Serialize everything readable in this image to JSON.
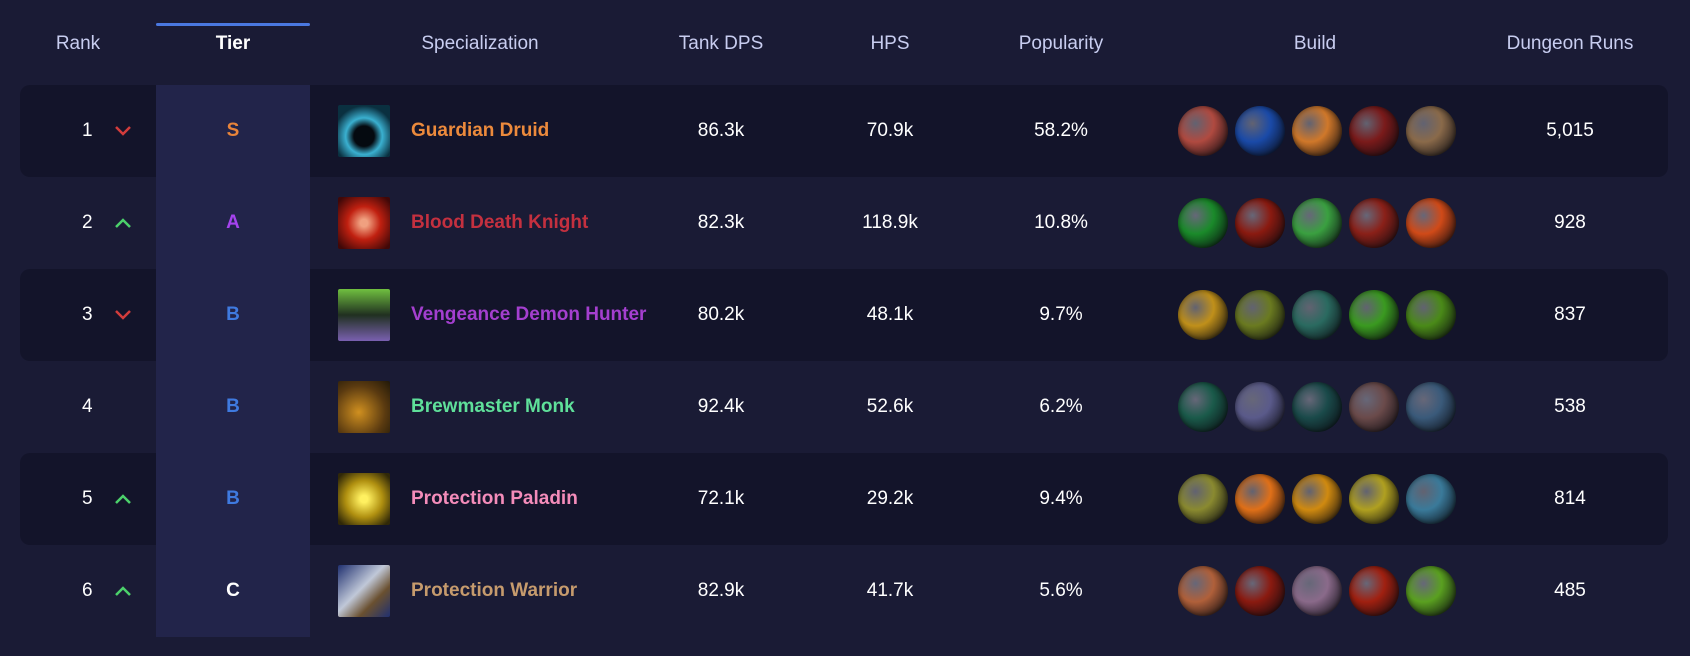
{
  "headers": {
    "rank": "Rank",
    "tier": "Tier",
    "spec": "Specialization",
    "tank_dps": "Tank DPS",
    "hps": "HPS",
    "popularity": "Popularity",
    "build": "Build",
    "runs": "Dungeon Runs"
  },
  "colors": {
    "up": "#4cd16b",
    "down": "#d23c3c",
    "tier_S": "#e8843a",
    "tier_A": "#a543ee",
    "tier_B": "#3f7ae0",
    "tier_C": "#ffffff",
    "accent": "#4a78e0"
  },
  "rows": [
    {
      "rank": "1",
      "trend": "down",
      "tier": "S",
      "spec": "Guardian Druid",
      "spec_color": "#ec8a3c",
      "tank_dps": "86.3k",
      "hps": "70.9k",
      "popularity": "58.2%",
      "runs": "5,015",
      "spec_icon": "bear-paw-icon",
      "build": [
        "#b04a40",
        "#1a4aa8",
        "#d0782a",
        "#7a1a1a",
        "#8a6a4a"
      ]
    },
    {
      "rank": "2",
      "trend": "up",
      "tier": "A",
      "spec": "Blood Death Knight",
      "spec_color": "#c4303f",
      "tank_dps": "82.3k",
      "hps": "118.9k",
      "popularity": "10.8%",
      "runs": "928",
      "spec_icon": "blood-skull-icon",
      "build": [
        "#1a8a2a",
        "#8a1a10",
        "#3aa040",
        "#8a2018",
        "#d04a18"
      ]
    },
    {
      "rank": "3",
      "trend": "down",
      "tier": "B",
      "spec": "Vengeance Demon Hunter",
      "spec_color": "#a43fcf",
      "tank_dps": "80.2k",
      "hps": "48.1k",
      "popularity": "9.7%",
      "runs": "837",
      "spec_icon": "demon-horns-icon",
      "build": [
        "#c0901a",
        "#6a7a20",
        "#2a6a60",
        "#3a9a20",
        "#4a8a18"
      ]
    },
    {
      "rank": "4",
      "trend": "none",
      "tier": "B",
      "spec": "Brewmaster Monk",
      "spec_color": "#5fe09a",
      "tank_dps": "92.4k",
      "hps": "52.6k",
      "popularity": "6.2%",
      "runs": "538",
      "spec_icon": "brew-keg-icon",
      "build": [
        "#1a5a4a",
        "#5a5a8a",
        "#1a4a4a",
        "#6a4a4a",
        "#3a5a7a"
      ]
    },
    {
      "rank": "5",
      "trend": "up",
      "tier": "B",
      "spec": "Protection Paladin",
      "spec_color": "#f48cba",
      "tank_dps": "72.1k",
      "hps": "29.2k",
      "popularity": "9.4%",
      "runs": "814",
      "spec_icon": "golden-helm-icon",
      "build": [
        "#8a8a30",
        "#e07018",
        "#d08a10",
        "#b0a020",
        "#3a7a9a"
      ]
    },
    {
      "rank": "6",
      "trend": "up",
      "tier": "C",
      "spec": "Protection Warrior",
      "spec_color": "#c69b6d",
      "tank_dps": "82.9k",
      "hps": "41.7k",
      "popularity": "5.6%",
      "runs": "485",
      "spec_icon": "shield-icon",
      "build": [
        "#b0603a",
        "#8a1a10",
        "#8a6a8a",
        "#a02010",
        "#5aa020"
      ]
    }
  ]
}
